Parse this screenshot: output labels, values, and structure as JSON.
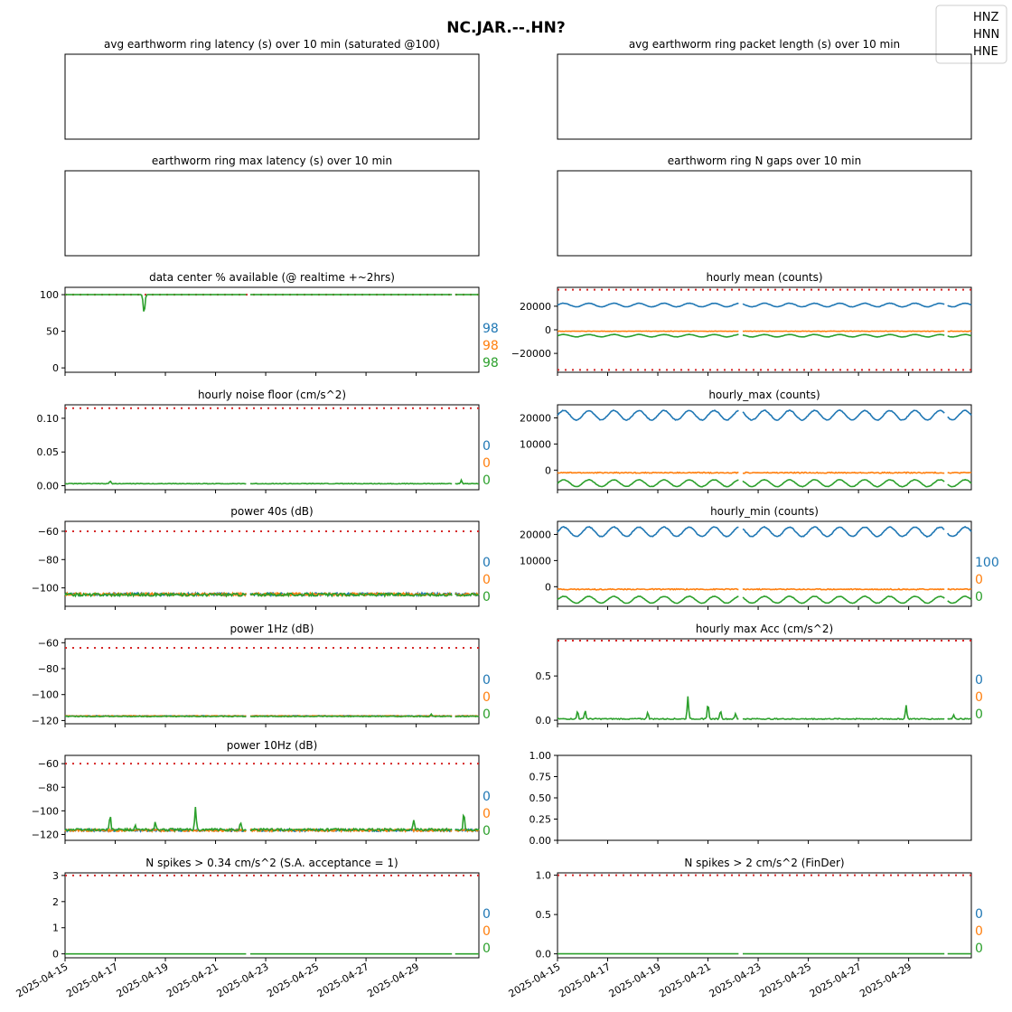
{
  "figure": {
    "title": "NC.JAR.--.HN?",
    "legend": {
      "placement": "top-right",
      "entries": [
        {
          "label": "HNZ",
          "color": "#1f77b4"
        },
        {
          "label": "HNN",
          "color": "#ff7f0e"
        },
        {
          "label": "HNE",
          "color": "#2ca02c"
        }
      ]
    },
    "date_ticks": [
      "2025-04-15",
      "2025-04-17",
      "2025-04-19",
      "2025-04-21",
      "2025-04-23",
      "2025-04-25",
      "2025-04-27",
      "2025-04-29"
    ],
    "date_range": [
      "2025-04-15",
      "2025-05-01"
    ],
    "threshold_color": "#d62728"
  },
  "chart_data": [
    {
      "id": "p1",
      "type": "line",
      "title": "avg earthworm ring latency (s)   over 10 min (saturated @100)",
      "series": [],
      "show_yticks": false
    },
    {
      "id": "p2",
      "type": "line",
      "title": "avg earthworm ring packet length (s)   over 10 min",
      "series": [],
      "show_yticks": false
    },
    {
      "id": "p3",
      "type": "line",
      "title": "earthworm ring max latency (s)   over 10 min",
      "series": [],
      "show_yticks": false
    },
    {
      "id": "p4",
      "type": "line",
      "title": "earthworm ring N gaps   over 10 min",
      "series": [],
      "show_yticks": false
    },
    {
      "id": "p5",
      "type": "line",
      "title": "data center % available (@ realtime +~2hrs)",
      "ylim": [
        -6,
        110
      ],
      "yticks": [
        0,
        50,
        100
      ],
      "ytick_labels": [
        "0",
        "50",
        "100"
      ],
      "threshold": [
        100
      ],
      "side_labels": [
        "98",
        "98",
        "98"
      ],
      "series": [
        {
          "kind": "dip",
          "base": 100,
          "dips": [
            {
              "x": 3.15,
              "depth": 25,
              "w": 0.05
            }
          ]
        }
      ]
    },
    {
      "id": "p6",
      "type": "line",
      "title": "hourly mean (counts)",
      "ylim": [
        -36000,
        36000
      ],
      "yticks": [
        -20000,
        0,
        20000
      ],
      "ytick_labels": [
        "−20000",
        "0",
        "20000"
      ],
      "threshold": [
        34000,
        -34000
      ],
      "side_labels": [],
      "series": [
        {
          "kind": "wave",
          "base": 21000,
          "amp": 1500,
          "noise": 300
        },
        {
          "kind": "flat",
          "base": -1200,
          "amp": 200
        },
        {
          "kind": "wave",
          "base": -5000,
          "amp": 1000,
          "noise": 200
        }
      ]
    },
    {
      "id": "p7",
      "type": "line",
      "title": "hourly noise floor (cm/s^2)",
      "ylim": [
        -0.006,
        0.12
      ],
      "yticks": [
        0.0,
        0.05,
        0.1
      ],
      "ytick_labels": [
        "0.00",
        "0.05",
        "0.10"
      ],
      "threshold": [
        0.115
      ],
      "side_labels": [
        "0",
        "0",
        "0"
      ],
      "series": [
        {
          "kind": "flat",
          "base": 0.003,
          "amp": 0.0004,
          "spikes": [
            {
              "x": 1.8,
              "h": 0.004
            },
            {
              "x": 15.8,
              "h": 0.005
            }
          ]
        }
      ]
    },
    {
      "id": "p8",
      "type": "line",
      "title": "hourly_max (counts)",
      "ylim": [
        -7500,
        25000
      ],
      "yticks": [
        0,
        10000,
        20000
      ],
      "ytick_labels": [
        "0",
        "10000",
        "20000"
      ],
      "threshold": [],
      "side_labels": [],
      "series": [
        {
          "kind": "wave",
          "base": 21000,
          "amp": 1800,
          "noise": 300
        },
        {
          "kind": "flat",
          "base": -1000,
          "amp": 200
        },
        {
          "kind": "wave",
          "base": -5000,
          "amp": 1300,
          "noise": 200
        }
      ]
    },
    {
      "id": "p9",
      "type": "line",
      "title": "power 40s (dB)",
      "ylim": [
        -113,
        -53
      ],
      "yticks": [
        -100,
        -80,
        -60
      ],
      "ytick_labels": [
        "−100",
        "−80",
        "−60"
      ],
      "threshold": [
        -60
      ],
      "side_labels": [
        "0",
        "0",
        "0"
      ],
      "series": [
        {
          "kind": "noise",
          "base": -104.5,
          "amp": 1.0
        },
        {
          "kind": "noise",
          "base": -104.5,
          "amp": 1.0
        },
        {
          "kind": "noise",
          "base": -104.8,
          "amp": 1.0
        }
      ]
    },
    {
      "id": "p10",
      "type": "line",
      "title": "hourly_min (counts)",
      "ylim": [
        -7500,
        25000
      ],
      "yticks": [
        0,
        10000,
        20000
      ],
      "ytick_labels": [
        "0",
        "10000",
        "20000"
      ],
      "threshold": [],
      "side_labels": [
        "100",
        "0",
        "0"
      ],
      "series": [
        {
          "kind": "wave",
          "base": 21000,
          "amp": 1800,
          "noise": 300
        },
        {
          "kind": "flat",
          "base": -1000,
          "amp": 200
        },
        {
          "kind": "wave",
          "base": -5000,
          "amp": 1300,
          "noise": 200
        }
      ]
    },
    {
      "id": "p11",
      "type": "line",
      "title": "power 1Hz (dB)",
      "ylim": [
        -122.5,
        -57
      ],
      "yticks": [
        -120,
        -100,
        -80,
        -60
      ],
      "ytick_labels": [
        "−120",
        "−100",
        "−80",
        "−60"
      ],
      "threshold": [
        -64
      ],
      "side_labels": [
        "0",
        "0",
        "0"
      ],
      "series": [
        {
          "kind": "noise",
          "base": -116.5,
          "amp": 0.3
        },
        {
          "kind": "noise",
          "base": -116.5,
          "amp": 0.3
        },
        {
          "kind": "noise",
          "base": -116.8,
          "amp": 0.3,
          "spikes": [
            {
              "x": 14.6,
              "h": 1.5
            }
          ]
        }
      ]
    },
    {
      "id": "p12",
      "type": "line",
      "title": "hourly max Acc (cm/s^2)",
      "ylim": [
        -0.04,
        0.92
      ],
      "yticks": [
        0.0,
        0.5
      ],
      "ytick_labels": [
        "0.0",
        "0.5"
      ],
      "threshold": [
        0.9
      ],
      "side_labels": [
        "0",
        "0",
        "0"
      ],
      "series": [
        {
          "kind": "flat",
          "base": 0.015,
          "amp": 0.006,
          "spikes": [
            {
              "x": 0.8,
              "h": 0.09
            },
            {
              "x": 1.1,
              "h": 0.1
            },
            {
              "x": 3.6,
              "h": 0.08
            },
            {
              "x": 5.2,
              "h": 0.26
            },
            {
              "x": 6.0,
              "h": 0.18
            },
            {
              "x": 6.5,
              "h": 0.1
            },
            {
              "x": 7.1,
              "h": 0.06
            },
            {
              "x": 13.9,
              "h": 0.16
            },
            {
              "x": 15.8,
              "h": 0.05
            }
          ]
        }
      ]
    },
    {
      "id": "p13",
      "type": "line",
      "title": "power 10Hz (dB)",
      "ylim": [
        -125,
        -53
      ],
      "yticks": [
        -120,
        -100,
        -80,
        -60
      ],
      "ytick_labels": [
        "−120",
        "−100",
        "−80",
        "−60"
      ],
      "threshold": [
        -60
      ],
      "side_labels": [
        "0",
        "0",
        "0"
      ],
      "series": [
        {
          "kind": "noise",
          "base": -116.5,
          "amp": 1.0
        },
        {
          "kind": "noise",
          "base": -116.5,
          "amp": 1.0
        },
        {
          "kind": "noise",
          "base": -116,
          "amp": 1.0,
          "spikes": [
            {
              "x": 1.8,
              "h": 12
            },
            {
              "x": 2.8,
              "h": 3
            },
            {
              "x": 3.6,
              "h": 6
            },
            {
              "x": 5.2,
              "h": 20
            },
            {
              "x": 7.0,
              "h": 6
            },
            {
              "x": 13.9,
              "h": 9
            },
            {
              "x": 15.9,
              "h": 15
            }
          ]
        }
      ]
    },
    {
      "id": "p14",
      "type": "line",
      "title": "",
      "ylim": [
        0,
        1
      ],
      "yticks": [
        0,
        0.25,
        0.5,
        0.75,
        1.0
      ],
      "ytick_labels": [
        "0.00",
        "0.25",
        "0.50",
        "0.75",
        "1.00"
      ],
      "threshold": [],
      "side_labels": [],
      "series": []
    },
    {
      "id": "p15",
      "type": "line",
      "title": "N spikes > 0.34 cm/s^2 (S.A. acceptance = 1)",
      "ylim": [
        -0.15,
        3.1
      ],
      "yticks": [
        0,
        1,
        2,
        3
      ],
      "ytick_labels": [
        "0",
        "1",
        "2",
        "3"
      ],
      "threshold": [
        3
      ],
      "side_labels": [
        "0",
        "0",
        "0"
      ],
      "series": [
        {
          "kind": "flat",
          "base": 0,
          "amp": 0
        }
      ],
      "show_dates": true
    },
    {
      "id": "p16",
      "type": "line",
      "title": "N spikes > 2 cm/s^2 (FinDer)",
      "ylim": [
        -0.05,
        1.03
      ],
      "yticks": [
        0.0,
        0.5,
        1.0
      ],
      "ytick_labels": [
        "0.0",
        "0.5",
        "1.0"
      ],
      "threshold": [
        1.0
      ],
      "side_labels": [
        "0",
        "0",
        "0"
      ],
      "series": [
        {
          "kind": "flat",
          "base": 0,
          "amp": 0
        }
      ],
      "show_dates": true
    }
  ]
}
